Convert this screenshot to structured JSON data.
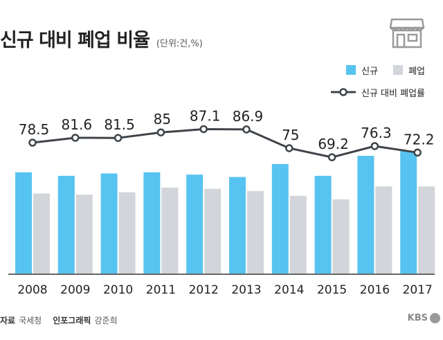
{
  "header": {
    "title": "신규 대비 폐업 비율",
    "unit": "(단위:건,%)"
  },
  "icons": {
    "shop": "storefront-icon",
    "brand": "kbs-logo-icon"
  },
  "colors": {
    "new": "#57c3f0",
    "closed": "#d2d5da",
    "line": "#3f4449",
    "axis": "#333333"
  },
  "chart_data": {
    "type": "bar",
    "categories": [
      "2008",
      "2009",
      "2010",
      "2011",
      "2012",
      "2013",
      "2014",
      "2015",
      "2016",
      "2017"
    ],
    "series": [
      {
        "name": "신규",
        "kind": "bar",
        "values": [
          0.86,
          0.83,
          0.85,
          0.86,
          0.84,
          0.82,
          0.93,
          0.83,
          1.0,
          1.04
        ]
      },
      {
        "name": "폐업",
        "kind": "bar",
        "values": [
          0.68,
          0.67,
          0.69,
          0.73,
          0.72,
          0.7,
          0.66,
          0.63,
          0.74,
          0.74
        ]
      },
      {
        "name": "신규 대비 폐업률",
        "kind": "line",
        "values": [
          78.5,
          81.6,
          81.5,
          85,
          87.1,
          86.9,
          75,
          69.2,
          76.3,
          72.2
        ]
      }
    ],
    "bar_value_note": "relative values",
    "line_labels": [
      "78.5",
      "81.6",
      "81.5",
      "85",
      "87.1",
      "86.9",
      "75",
      "69.2",
      "76.3",
      "72.2"
    ],
    "legend_position": "top-right",
    "grid": false
  },
  "footer": {
    "source_label": "자료",
    "source": "국세청",
    "graphic_label": "인포그래픽",
    "graphic": "강준희",
    "brand": "KBS"
  }
}
